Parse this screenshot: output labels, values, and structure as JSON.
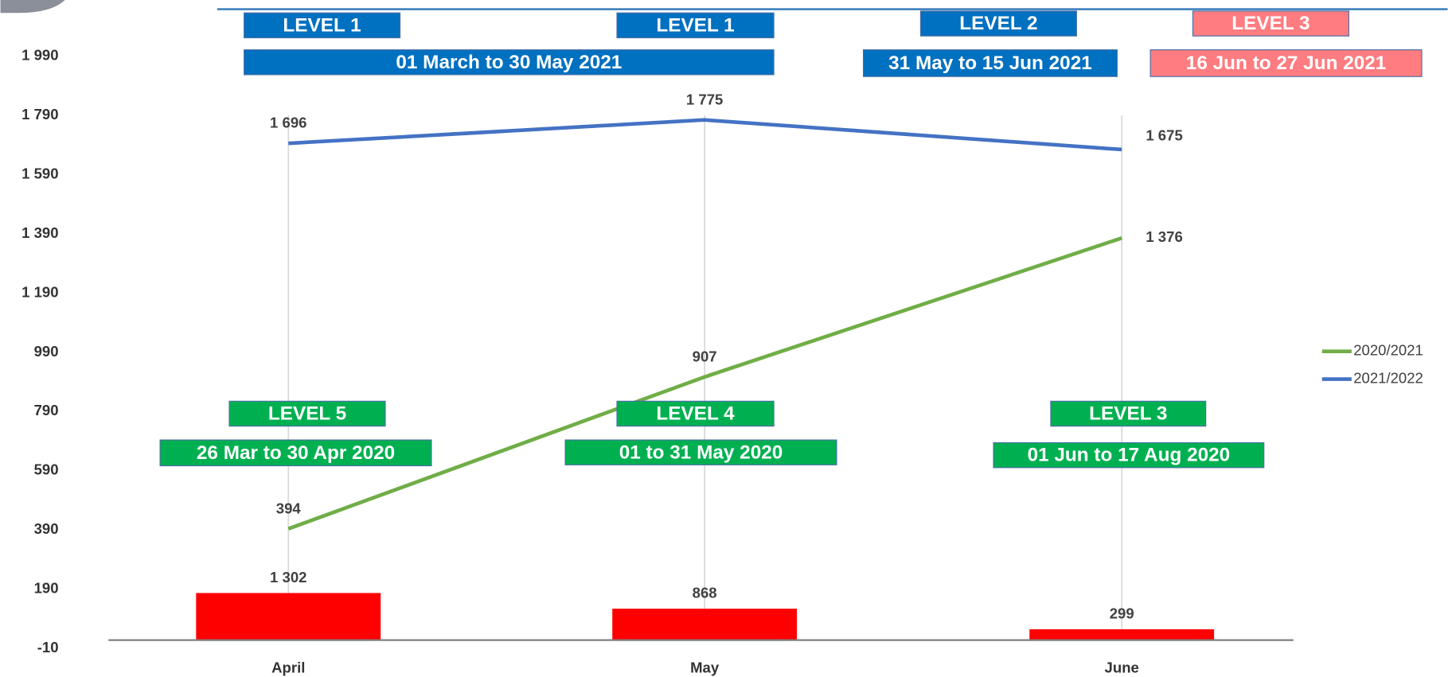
{
  "chart_data": {
    "type": "line",
    "categories": [
      "April",
      "May",
      "June"
    ],
    "series": [
      {
        "name": "2020/2021",
        "color": "#70ad47",
        "values": [
          394,
          907,
          1376
        ],
        "value_labels": [
          "394",
          "907",
          "1 376"
        ]
      },
      {
        "name": "2021/2022",
        "color": "#4472c4",
        "values": [
          1696,
          1775,
          1675
        ],
        "value_labels": [
          "1 696",
          "1 775",
          "1 675"
        ]
      },
      {
        "type": "bar",
        "axis": "y2",
        "color": "#ff0000",
        "values": [
          1302,
          868,
          299
        ],
        "value_labels": [
          "1 302",
          "868",
          "299"
        ]
      }
    ],
    "ylim": [
      -10,
      1990
    ],
    "yticks": [
      -10,
      190,
      390,
      590,
      790,
      990,
      {
        "value": 1190,
        "label": "1 190"
      },
      {
        "value": 1390,
        "label": "1 390"
      },
      {
        "value": 1590,
        "label": "1 590"
      },
      {
        "value": 1790,
        "label": "1 790"
      },
      {
        "value": 1990,
        "label": "1 990"
      }
    ],
    "y2lim": [
      -230,
      16150
    ],
    "legend": "right",
    "annotations": [
      {
        "text": "LEVEL 1",
        "color": "#0070c0"
      },
      {
        "text": "LEVEL 1",
        "color": "#0070c0"
      },
      {
        "text": "LEVEL 2",
        "color": "#0070c0"
      },
      {
        "text": "LEVEL 3",
        "color": "#ff7c80"
      },
      {
        "text": "01 March to 30 May 2021",
        "color": "#0070c0"
      },
      {
        "text": "31 May to 15 Jun 2021",
        "color": "#0070c0"
      },
      {
        "text": "16 Jun to 27 Jun 2021",
        "color": "#ff7c80"
      },
      {
        "text": "LEVEL 5",
        "color": "#00b050"
      },
      {
        "text": "LEVEL 4",
        "color": "#00b050"
      },
      {
        "text": "LEVEL 3",
        "color": "#00b050"
      },
      {
        "text": "26 Mar to 30 Apr 2020",
        "color": "#00b050"
      },
      {
        "text": "01 to 31 May 2020",
        "color": "#00b050"
      },
      {
        "text": "01 Jun to 17 Aug 2020",
        "color": "#00b050"
      }
    ]
  }
}
